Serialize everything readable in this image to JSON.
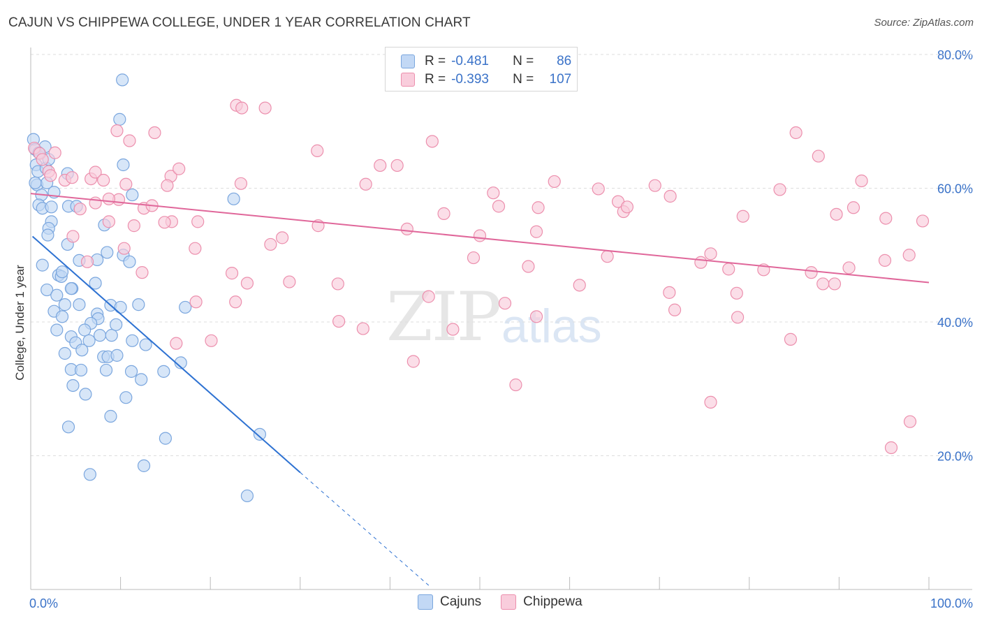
{
  "title": "CAJUN VS CHIPPEWA COLLEGE, UNDER 1 YEAR CORRELATION CHART",
  "source": "Source: ZipAtlas.com",
  "watermark": {
    "zip": "ZIP",
    "atlas": "atlas"
  },
  "legend": {
    "rows": [
      {
        "r_label": "R =",
        "r_value": "-0.481",
        "n_label": "N =",
        "n_value": "86",
        "color": "#a9c8f0",
        "border": "#7aa6de"
      },
      {
        "r_label": "R =",
        "r_value": "-0.393",
        "n_label": "N =",
        "n_value": "107",
        "color": "#f7bcd0",
        "border": "#ec8fad"
      }
    ]
  },
  "bottom_legend": [
    {
      "label": "Cajuns",
      "color": "#c2d8f5",
      "border": "#7aa6de"
    },
    {
      "label": "Chippewa",
      "color": "#f9cddc",
      "border": "#ec8fad"
    }
  ],
  "chart_data": {
    "type": "scatter",
    "title": "CAJUN VS CHIPPEWA COLLEGE, UNDER 1 YEAR CORRELATION CHART",
    "xlabel": "",
    "ylabel": "College, Under 1 year",
    "xlim": [
      0,
      100
    ],
    "ylim": [
      0,
      85
    ],
    "x_ticks": [
      "0.0%",
      "100.0%"
    ],
    "y_ticks": [
      {
        "value": 20,
        "label": "20.0%"
      },
      {
        "value": 40,
        "label": "40.0%"
      },
      {
        "value": 60,
        "label": "60.0%"
      },
      {
        "value": 80,
        "label": "80.0%"
      }
    ],
    "grid": true,
    "series": [
      {
        "name": "Cajuns",
        "color": "#7aa6de",
        "fill": "#c2d8f5",
        "trend": {
          "x1": 0.2,
          "y1": 52.8,
          "x2": 30,
          "y2": 17.5,
          "dash_to_x": 44.4,
          "dash_to_y": 0.5,
          "color": "#2e72d2"
        },
        "points": [
          [
            0.3,
            67.3
          ],
          [
            0.5,
            65.8
          ],
          [
            0.6,
            63.5
          ],
          [
            0.8,
            62.5
          ],
          [
            0.7,
            60.5
          ],
          [
            1.2,
            59.0
          ],
          [
            0.9,
            57.5
          ],
          [
            1.3,
            57.0
          ],
          [
            1.8,
            60.8
          ],
          [
            1.7,
            63.0
          ],
          [
            2.3,
            57.2
          ],
          [
            2.3,
            55.0
          ],
          [
            2.0,
            54.0
          ],
          [
            1.9,
            53.0
          ],
          [
            4.1,
            62.2
          ],
          [
            2.6,
            59.4
          ],
          [
            4.2,
            57.3
          ],
          [
            4.1,
            51.6
          ],
          [
            5.4,
            49.2
          ],
          [
            1.3,
            48.5
          ],
          [
            3.1,
            47.0
          ],
          [
            3.4,
            46.8
          ],
          [
            3.5,
            47.5
          ],
          [
            1.8,
            44.8
          ],
          [
            4.6,
            45.0
          ],
          [
            2.9,
            44.0
          ],
          [
            3.8,
            42.6
          ],
          [
            5.4,
            42.6
          ],
          [
            2.6,
            41.6
          ],
          [
            3.5,
            40.8
          ],
          [
            8.2,
            54.5
          ],
          [
            8.5,
            50.4
          ],
          [
            10.3,
            50.0
          ],
          [
            11.0,
            49.0
          ],
          [
            7.4,
            49.3
          ],
          [
            8.9,
            42.5
          ],
          [
            10.0,
            42.2
          ],
          [
            12.0,
            42.6
          ],
          [
            7.4,
            41.2
          ],
          [
            7.5,
            40.5
          ],
          [
            6.7,
            39.8
          ],
          [
            2.9,
            38.8
          ],
          [
            4.5,
            37.8
          ],
          [
            6.0,
            38.8
          ],
          [
            6.5,
            37.2
          ],
          [
            7.7,
            38.0
          ],
          [
            9.0,
            38.0
          ],
          [
            9.5,
            39.6
          ],
          [
            11.3,
            37.2
          ],
          [
            12.8,
            36.6
          ],
          [
            5.0,
            36.9
          ],
          [
            5.7,
            35.8
          ],
          [
            3.8,
            35.3
          ],
          [
            8.1,
            34.8
          ],
          [
            8.6,
            34.8
          ],
          [
            9.6,
            35.0
          ],
          [
            4.5,
            32.9
          ],
          [
            5.6,
            32.8
          ],
          [
            8.4,
            32.8
          ],
          [
            11.2,
            32.6
          ],
          [
            12.3,
            31.4
          ],
          [
            4.7,
            30.5
          ],
          [
            6.1,
            29.2
          ],
          [
            10.6,
            28.7
          ],
          [
            14.8,
            32.6
          ],
          [
            16.7,
            33.9
          ],
          [
            17.2,
            42.2
          ],
          [
            8.9,
            25.9
          ],
          [
            4.2,
            24.3
          ],
          [
            15.0,
            22.6
          ],
          [
            12.6,
            18.5
          ],
          [
            6.6,
            17.2
          ],
          [
            24.1,
            14.0
          ],
          [
            25.5,
            23.2
          ],
          [
            22.6,
            58.4
          ],
          [
            9.9,
            70.3
          ],
          [
            11.3,
            59.0
          ],
          [
            10.2,
            76.2
          ],
          [
            10.3,
            63.5
          ],
          [
            5.1,
            57.3
          ],
          [
            4.5,
            45.0
          ],
          [
            7.2,
            45.8
          ],
          [
            1.6,
            66.2
          ],
          [
            2.0,
            64.3
          ],
          [
            0.9,
            65.3
          ],
          [
            0.5,
            60.8
          ]
        ]
      },
      {
        "name": "Chippewa",
        "color": "#ec8fad",
        "fill": "#f9cddc",
        "trend": {
          "x1": 0,
          "y1": 59.2,
          "x2": 100,
          "y2": 45.9,
          "color": "#e0679a"
        },
        "points": [
          [
            0.4,
            66.0
          ],
          [
            1.0,
            65.2
          ],
          [
            1.3,
            64.3
          ],
          [
            2.7,
            65.3
          ],
          [
            2.0,
            62.5
          ],
          [
            2.2,
            61.9
          ],
          [
            3.8,
            61.2
          ],
          [
            4.6,
            61.6
          ],
          [
            6.7,
            61.4
          ],
          [
            7.2,
            62.4
          ],
          [
            8.1,
            61.2
          ],
          [
            9.6,
            68.6
          ],
          [
            11.0,
            67.1
          ],
          [
            13.8,
            68.3
          ],
          [
            15.6,
            61.8
          ],
          [
            15.2,
            60.4
          ],
          [
            16.5,
            62.9
          ],
          [
            10.6,
            60.6
          ],
          [
            9.8,
            58.3
          ],
          [
            8.7,
            58.4
          ],
          [
            7.2,
            57.8
          ],
          [
            5.5,
            56.9
          ],
          [
            12.6,
            57.0
          ],
          [
            13.5,
            57.4
          ],
          [
            15.7,
            55.0
          ],
          [
            14.9,
            54.9
          ],
          [
            11.5,
            54.4
          ],
          [
            18.6,
            55.0
          ],
          [
            8.7,
            55.0
          ],
          [
            4.7,
            52.8
          ],
          [
            6.3,
            49.0
          ],
          [
            10.4,
            51.0
          ],
          [
            18.3,
            51.0
          ],
          [
            12.4,
            47.4
          ],
          [
            22.9,
            72.4
          ],
          [
            23.5,
            72.0
          ],
          [
            26.1,
            72.0
          ],
          [
            31.9,
            65.6
          ],
          [
            38.9,
            63.4
          ],
          [
            40.8,
            63.4
          ],
          [
            37.3,
            60.6
          ],
          [
            23.4,
            60.7
          ],
          [
            26.7,
            51.6
          ],
          [
            28.0,
            52.6
          ],
          [
            32.0,
            54.4
          ],
          [
            41.9,
            53.9
          ],
          [
            28.8,
            46.0
          ],
          [
            24.1,
            45.8
          ],
          [
            22.4,
            47.3
          ],
          [
            18.4,
            43.0
          ],
          [
            22.8,
            43.0
          ],
          [
            16.2,
            36.8
          ],
          [
            20.1,
            37.2
          ],
          [
            34.2,
            45.7
          ],
          [
            34.3,
            40.1
          ],
          [
            37.0,
            39.0
          ],
          [
            44.3,
            43.8
          ],
          [
            47.0,
            38.9
          ],
          [
            52.8,
            42.8
          ],
          [
            42.6,
            34.1
          ],
          [
            44.7,
            67.0
          ],
          [
            51.5,
            59.3
          ],
          [
            56.5,
            57.1
          ],
          [
            52.1,
            57.3
          ],
          [
            50.0,
            52.9
          ],
          [
            56.3,
            53.5
          ],
          [
            49.3,
            49.6
          ],
          [
            46.0,
            56.2
          ],
          [
            55.4,
            48.3
          ],
          [
            56.3,
            40.8
          ],
          [
            66.0,
            56.5
          ],
          [
            63.2,
            59.9
          ],
          [
            61.1,
            45.5
          ],
          [
            64.2,
            49.8
          ],
          [
            54.0,
            30.6
          ],
          [
            58.3,
            61.0
          ],
          [
            65.4,
            58.0
          ],
          [
            69.5,
            60.4
          ],
          [
            71.2,
            58.8
          ],
          [
            66.4,
            57.2
          ],
          [
            71.1,
            44.4
          ],
          [
            71.7,
            41.8
          ],
          [
            75.7,
            50.2
          ],
          [
            74.6,
            48.9
          ],
          [
            77.7,
            47.9
          ],
          [
            81.6,
            47.8
          ],
          [
            79.3,
            55.8
          ],
          [
            78.6,
            44.3
          ],
          [
            78.7,
            40.7
          ],
          [
            75.7,
            28.0
          ],
          [
            85.2,
            68.3
          ],
          [
            87.7,
            64.8
          ],
          [
            83.4,
            59.8
          ],
          [
            86.9,
            47.4
          ],
          [
            89.7,
            56.1
          ],
          [
            91.6,
            57.1
          ],
          [
            92.5,
            61.1
          ],
          [
            91.1,
            48.1
          ],
          [
            88.2,
            45.7
          ],
          [
            84.6,
            37.4
          ],
          [
            89.5,
            45.7
          ],
          [
            95.2,
            55.5
          ],
          [
            99.3,
            55.1
          ],
          [
            97.8,
            50.0
          ],
          [
            95.1,
            49.2
          ],
          [
            97.9,
            25.1
          ],
          [
            95.8,
            21.2
          ]
        ]
      }
    ]
  }
}
